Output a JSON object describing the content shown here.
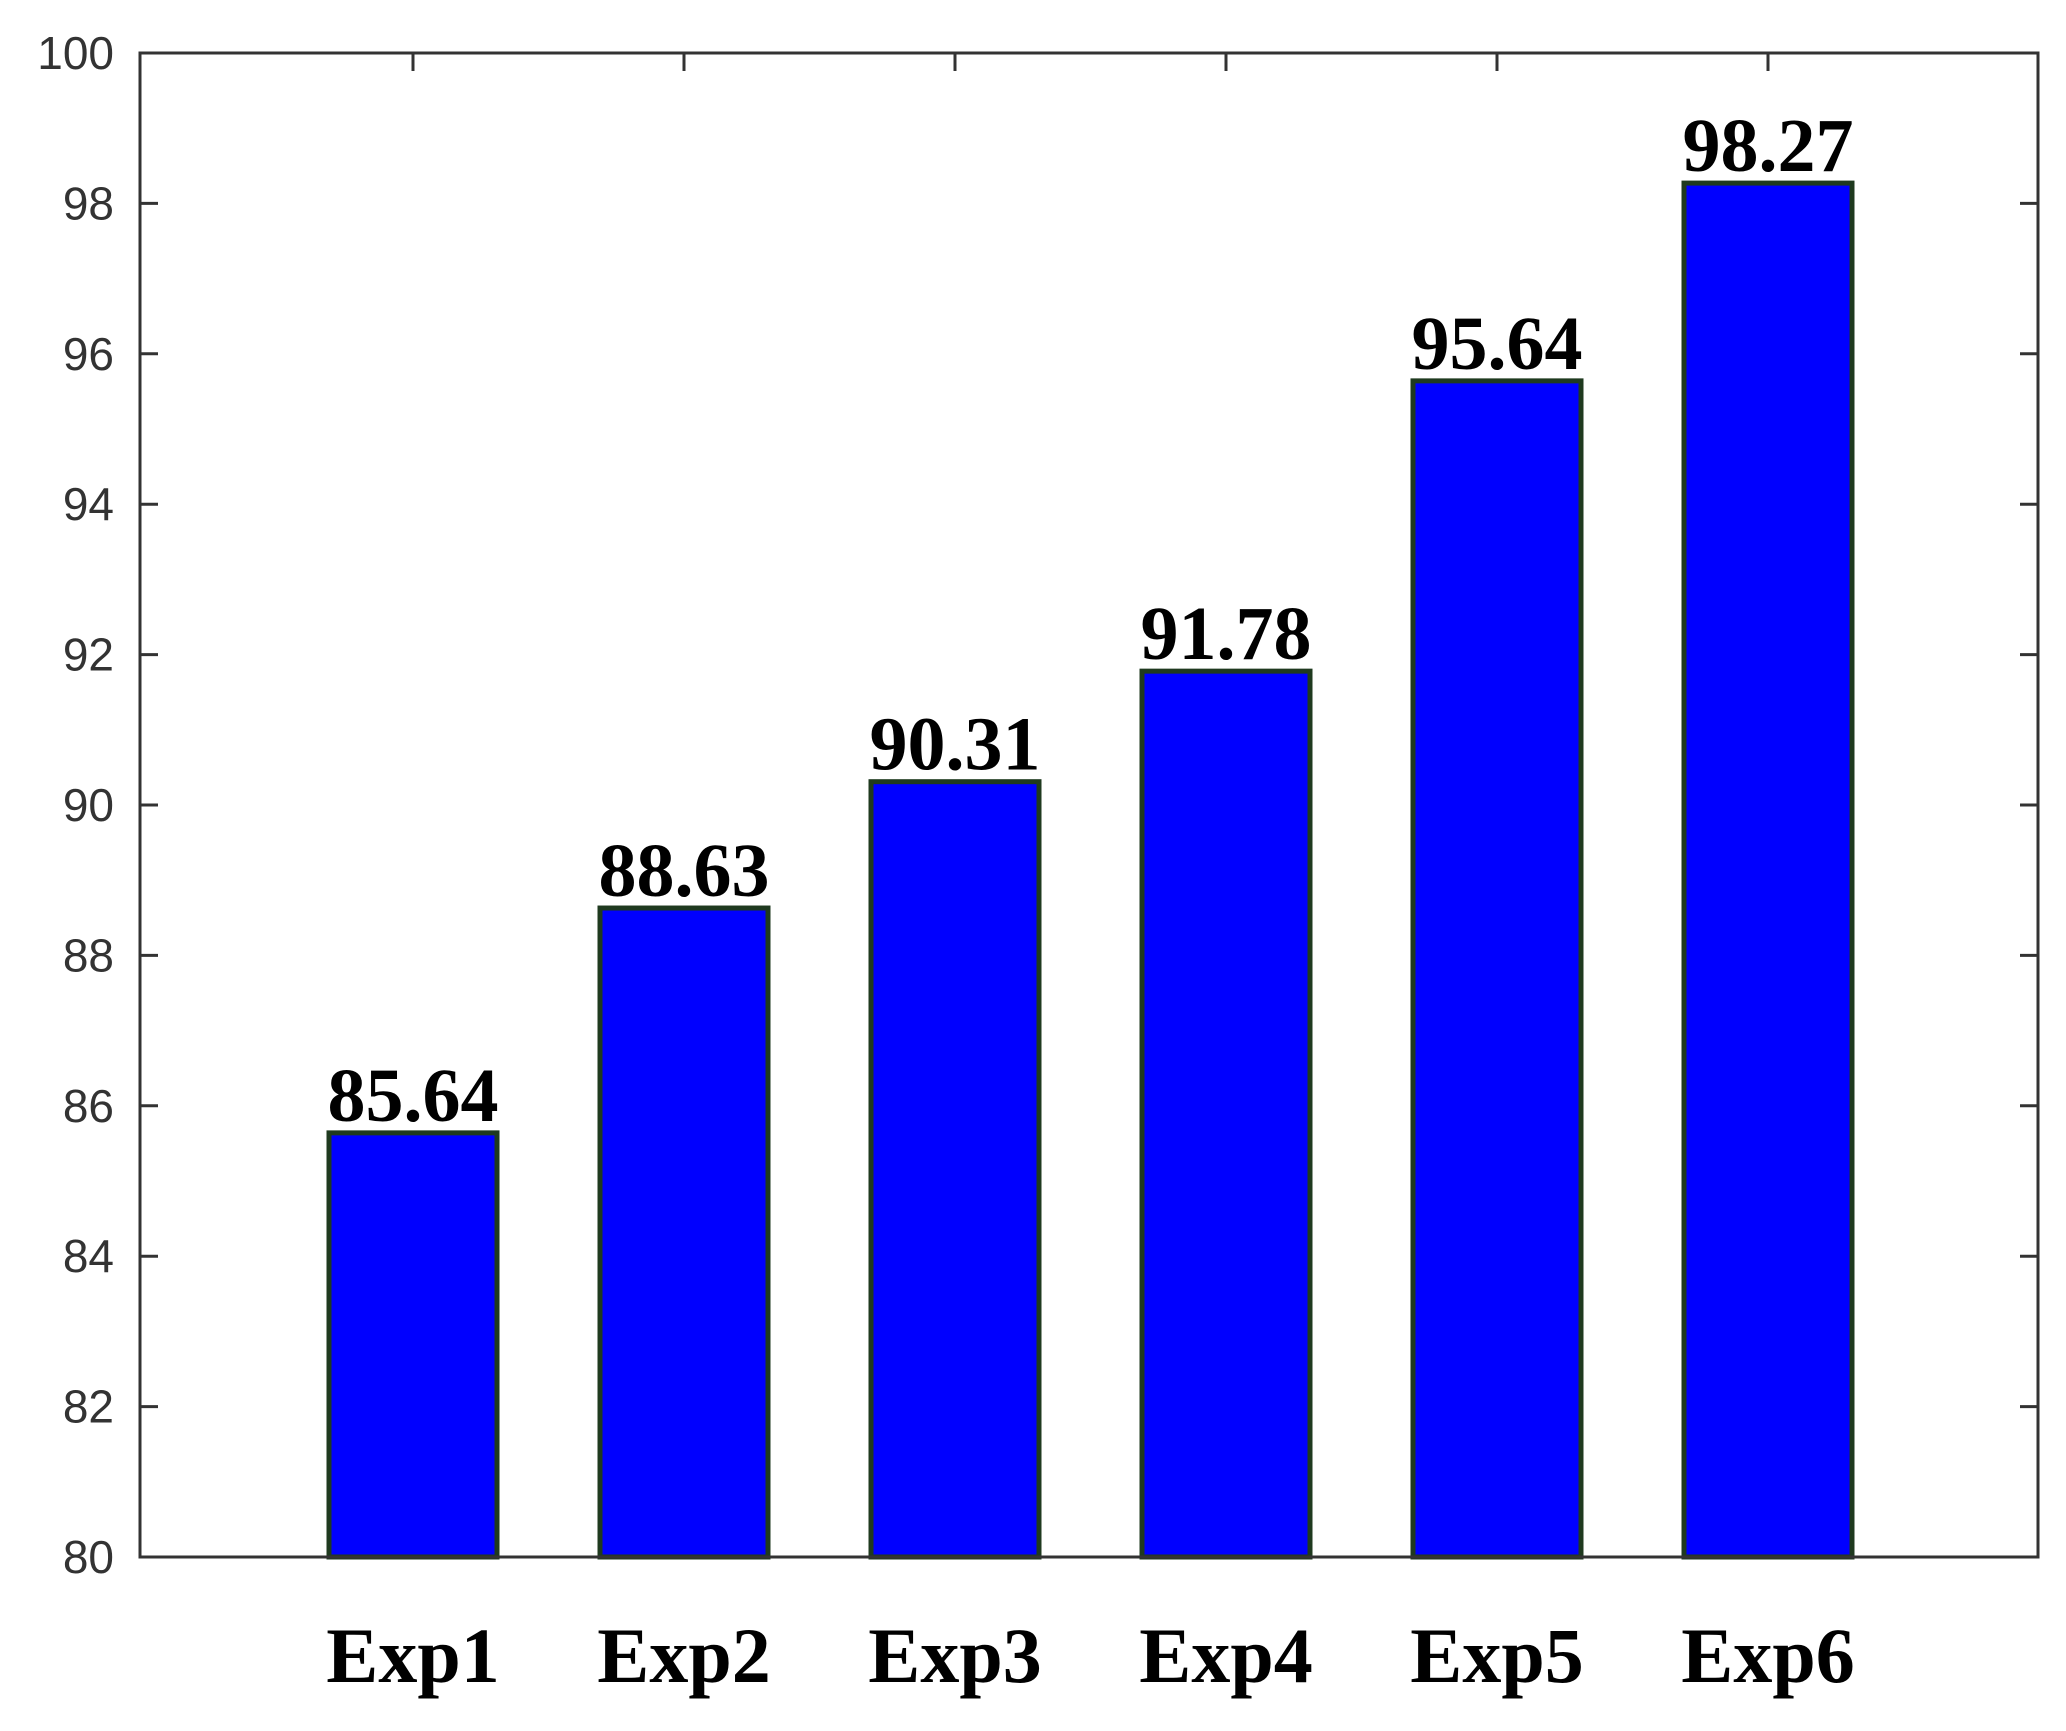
{
  "chart_data": {
    "type": "bar",
    "categories": [
      "Exp1",
      "Exp2",
      "Exp3",
      "Exp4",
      "Exp5",
      "Exp6"
    ],
    "values": [
      85.64,
      88.63,
      90.31,
      91.78,
      95.64,
      98.27
    ],
    "value_labels": [
      "85.64",
      "88.63",
      "90.31",
      "91.78",
      "95.64",
      "98.27"
    ],
    "title": "",
    "xlabel": "",
    "ylabel": "",
    "ylim": [
      80,
      100
    ],
    "yticks": [
      80,
      82,
      84,
      86,
      88,
      90,
      92,
      94,
      96,
      98,
      100
    ],
    "ytick_labels": [
      "80",
      "82",
      "84",
      "86",
      "88",
      "90",
      "92",
      "94",
      "96",
      "98",
      "100"
    ],
    "grid": false,
    "legend": "none",
    "colors": {
      "bar_fill": "#0000ff",
      "bar_edge": "#1f3a1f",
      "axis": "#333333"
    }
  }
}
